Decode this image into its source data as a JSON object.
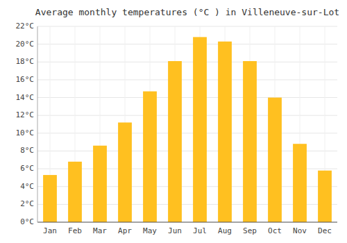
{
  "chart_data": {
    "type": "bar",
    "title": "Average monthly temperatures (°C ) in Villeneuve-sur-Lot",
    "categories": [
      "Jan",
      "Feb",
      "Mar",
      "Apr",
      "May",
      "Jun",
      "Jul",
      "Aug",
      "Sep",
      "Oct",
      "Nov",
      "Dec"
    ],
    "values": [
      5.3,
      6.8,
      8.6,
      11.2,
      14.7,
      18.1,
      20.8,
      20.3,
      18.1,
      14.0,
      8.8,
      5.8
    ],
    "color": "#FFC020",
    "ylim": [
      0,
      22
    ],
    "yticks": [
      {
        "value": 0,
        "label": "0°C"
      },
      {
        "value": 2,
        "label": "2°C"
      },
      {
        "value": 4,
        "label": "4°C"
      },
      {
        "value": 6,
        "label": "6°C"
      },
      {
        "value": 8,
        "label": "8°C"
      },
      {
        "value": 10,
        "label": "10°C"
      },
      {
        "value": 12,
        "label": "12°C"
      },
      {
        "value": 14,
        "label": "14°C"
      },
      {
        "value": 16,
        "label": "16°C"
      },
      {
        "value": 18,
        "label": "18°C"
      },
      {
        "value": 20,
        "label": "20°C"
      },
      {
        "value": 22,
        "label": "22°C"
      }
    ],
    "grid": true
  }
}
